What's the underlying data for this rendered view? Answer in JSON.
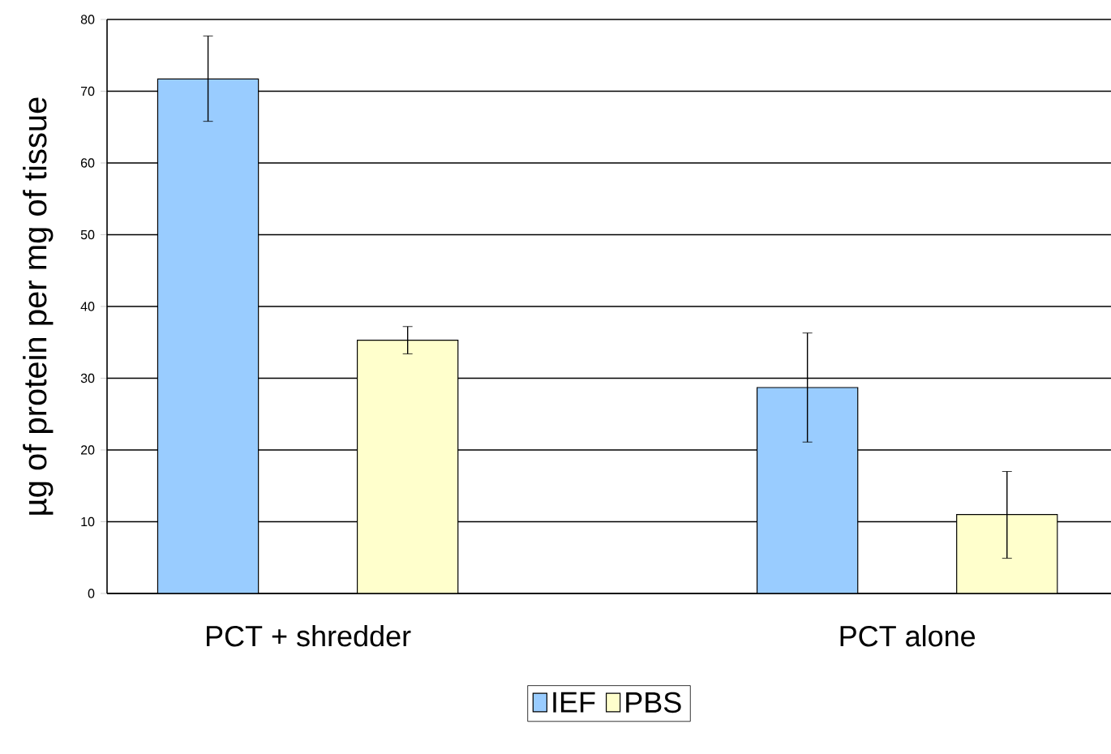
{
  "chart_data": {
    "type": "bar",
    "ylabel": "µg of protein per mg of tissue",
    "categories": [
      "PCT + shredder",
      "PCT alone"
    ],
    "series": [
      {
        "name": "IEF",
        "color": "#99ccff",
        "values": [
          71.7,
          28.7
        ],
        "errors": [
          [
            65.8,
            77.7
          ],
          [
            21.1,
            36.3
          ]
        ]
      },
      {
        "name": "PBS",
        "color": "#ffffcc",
        "values": [
          35.3,
          11.0
        ],
        "errors": [
          [
            33.4,
            37.2
          ],
          [
            4.9,
            17.0
          ]
        ]
      }
    ],
    "ylim": [
      0,
      80
    ],
    "yticks": [
      0,
      10,
      20,
      30,
      40,
      50,
      60,
      70,
      80
    ],
    "grid": "y",
    "legend": "bottom"
  }
}
